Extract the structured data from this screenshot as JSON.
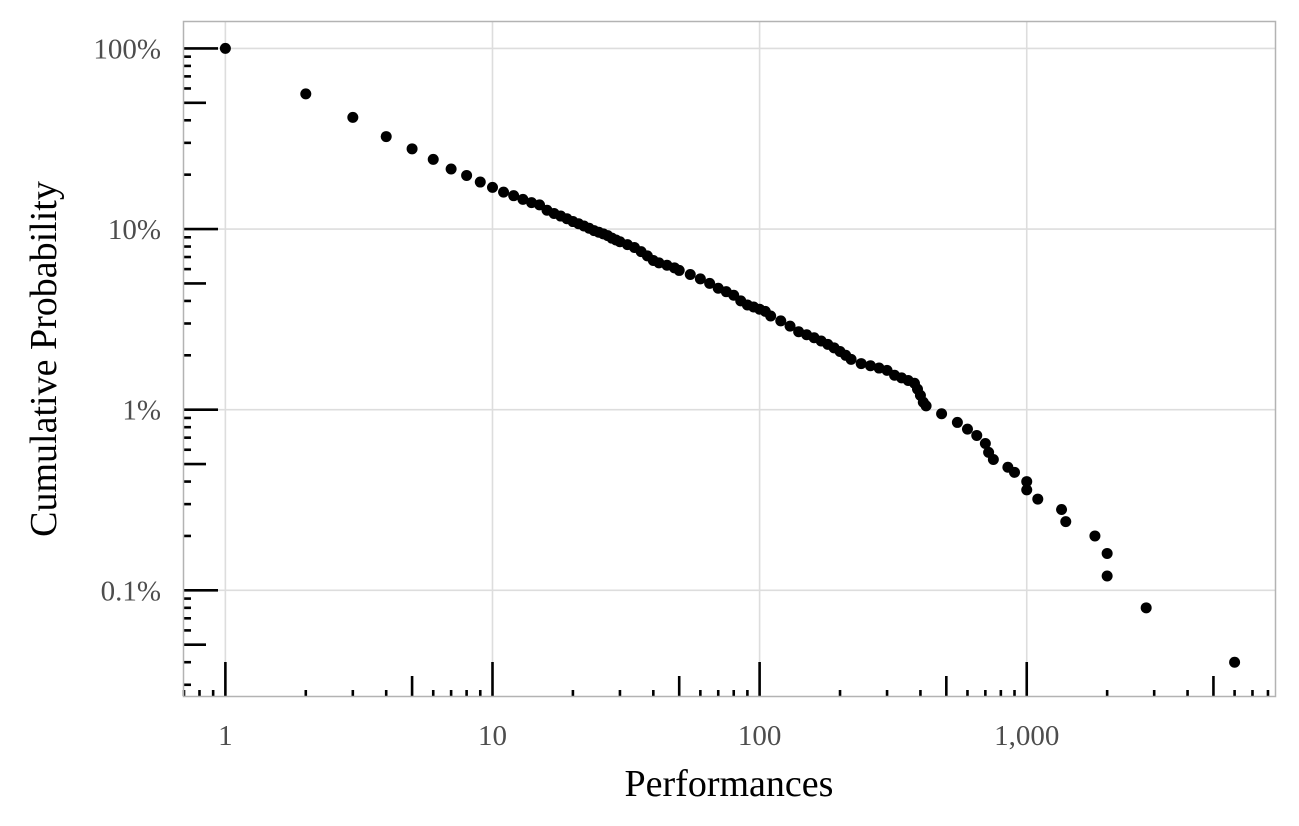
{
  "chart_data": {
    "type": "scatter",
    "xlabel": "Performances",
    "ylabel": "Cumulative Probability",
    "x_scale": "log10",
    "y_scale": "log10",
    "xlim": [
      0.7,
      8500
    ],
    "ylim": [
      0.00026,
      1.4
    ],
    "x_ticks": [
      {
        "value": 1,
        "label": "1"
      },
      {
        "value": 10,
        "label": "10"
      },
      {
        "value": 100,
        "label": "100"
      },
      {
        "value": 1000,
        "label": "1,000"
      }
    ],
    "y_ticks": [
      {
        "value": 1,
        "label": "100%"
      },
      {
        "value": 0.1,
        "label": "10%"
      },
      {
        "value": 0.01,
        "label": "1%"
      },
      {
        "value": 0.001,
        "label": "0.1%"
      }
    ],
    "grid": true,
    "log_tick_marks": true,
    "colors": {
      "points": "#000000",
      "grid": "#dddddd",
      "panel_border": "#b3b3b3"
    },
    "series": [
      {
        "points": [
          [
            1,
            1.0
          ],
          [
            2,
            0.56
          ],
          [
            3,
            0.415
          ],
          [
            4,
            0.325
          ],
          [
            5,
            0.278
          ],
          [
            6,
            0.243
          ],
          [
            7,
            0.215
          ],
          [
            8,
            0.198
          ],
          [
            9,
            0.182
          ],
          [
            10,
            0.17
          ],
          [
            11,
            0.16
          ],
          [
            12,
            0.153
          ],
          [
            13,
            0.146
          ],
          [
            14,
            0.14
          ],
          [
            15,
            0.136
          ],
          [
            16,
            0.127
          ],
          [
            17,
            0.122
          ],
          [
            18,
            0.118
          ],
          [
            19,
            0.114
          ],
          [
            20,
            0.11
          ],
          [
            21,
            0.107
          ],
          [
            22,
            0.104
          ],
          [
            23,
            0.101
          ],
          [
            24,
            0.098
          ],
          [
            25,
            0.096
          ],
          [
            26,
            0.094
          ],
          [
            27,
            0.092
          ],
          [
            28,
            0.089
          ],
          [
            29,
            0.087
          ],
          [
            30,
            0.085
          ],
          [
            32,
            0.082
          ],
          [
            34,
            0.079
          ],
          [
            36,
            0.075
          ],
          [
            38,
            0.071
          ],
          [
            40,
            0.067
          ],
          [
            42,
            0.065
          ],
          [
            45,
            0.063
          ],
          [
            48,
            0.061
          ],
          [
            50,
            0.059
          ],
          [
            55,
            0.056
          ],
          [
            60,
            0.053
          ],
          [
            65,
            0.05
          ],
          [
            70,
            0.047
          ],
          [
            75,
            0.045
          ],
          [
            80,
            0.043
          ],
          [
            85,
            0.04
          ],
          [
            90,
            0.038
          ],
          [
            95,
            0.037
          ],
          [
            100,
            0.036
          ],
          [
            105,
            0.035
          ],
          [
            110,
            0.033
          ],
          [
            120,
            0.031
          ],
          [
            130,
            0.029
          ],
          [
            140,
            0.027
          ],
          [
            150,
            0.026
          ],
          [
            160,
            0.025
          ],
          [
            170,
            0.024
          ],
          [
            180,
            0.023
          ],
          [
            190,
            0.022
          ],
          [
            200,
            0.021
          ],
          [
            210,
            0.02
          ],
          [
            220,
            0.019
          ],
          [
            240,
            0.018
          ],
          [
            260,
            0.0175
          ],
          [
            280,
            0.017
          ],
          [
            300,
            0.0165
          ],
          [
            320,
            0.0155
          ],
          [
            340,
            0.015
          ],
          [
            360,
            0.0145
          ],
          [
            380,
            0.014
          ],
          [
            390,
            0.013
          ],
          [
            400,
            0.012
          ],
          [
            410,
            0.011
          ],
          [
            420,
            0.0105
          ],
          [
            480,
            0.0095
          ],
          [
            550,
            0.0085
          ],
          [
            600,
            0.0078
          ],
          [
            650,
            0.0072
          ],
          [
            700,
            0.0065
          ],
          [
            720,
            0.0058
          ],
          [
            750,
            0.0053
          ],
          [
            850,
            0.0048
          ],
          [
            900,
            0.0045
          ],
          [
            1000,
            0.004
          ],
          [
            1000,
            0.0036
          ],
          [
            1100,
            0.0032
          ],
          [
            1350,
            0.0028
          ],
          [
            1400,
            0.0024
          ],
          [
            1800,
            0.002
          ],
          [
            2000,
            0.0016
          ],
          [
            2000,
            0.0012
          ],
          [
            2800,
            0.0008
          ],
          [
            6000,
            0.0004
          ]
        ]
      }
    ]
  }
}
